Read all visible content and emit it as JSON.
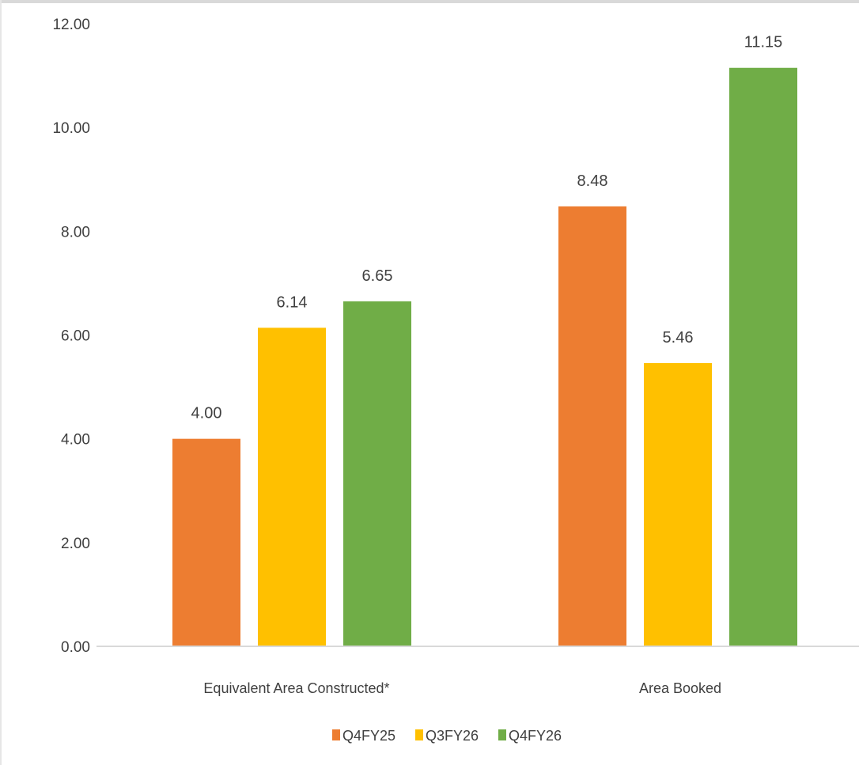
{
  "chart_data": {
    "type": "bar",
    "categories": [
      "Equivalent Area Constructed*",
      "Area Booked"
    ],
    "series": [
      {
        "name": "Q4FY25",
        "values": [
          4.0,
          8.48
        ],
        "color": "#ED7D31"
      },
      {
        "name": "Q3FY26",
        "values": [
          6.14,
          5.46
        ],
        "color": "#FFC000"
      },
      {
        "name": "Q4FY26",
        "values": [
          6.65,
          11.15
        ],
        "color": "#70AD47"
      }
    ],
    "ylim": [
      0,
      12
    ],
    "yticks": [
      "0.00",
      "2.00",
      "4.00",
      "6.00",
      "8.00",
      "10.00",
      "12.00"
    ],
    "data_labels": [
      [
        "4.00",
        "8.48"
      ],
      [
        "6.14",
        "5.46"
      ],
      [
        "6.65",
        "11.15"
      ]
    ],
    "grid": false,
    "legend_position": "bottom"
  }
}
